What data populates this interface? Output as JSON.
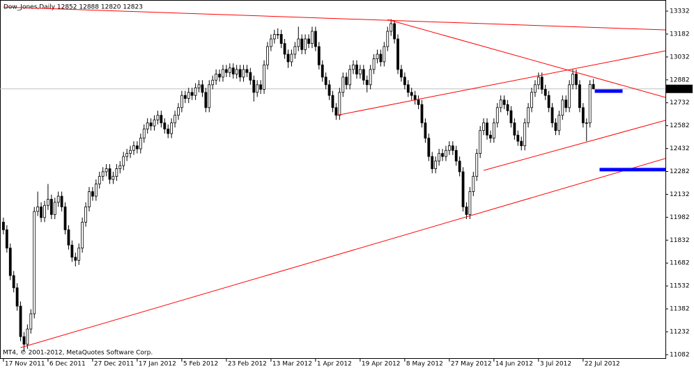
{
  "chart_data": {
    "type": "candlestick",
    "title": "Dow_Jones,Daily  12852 12888 12820 12823",
    "watermark": "MT4, © 2001-2012, MetaQuotes Software Corp.",
    "open": [
      11950,
      11900,
      11780,
      11600,
      11520,
      11400,
      11200,
      11150,
      11250,
      11350,
      12020,
      12050,
      11980,
      12060,
      12100,
      12000,
      12080,
      12120,
      12050,
      11900,
      11800,
      11720,
      11700,
      11780,
      11950,
      12050,
      12150,
      12120,
      12200,
      12250,
      12280,
      12300,
      12230,
      12250,
      12300,
      12320,
      12380,
      12400,
      12420,
      12450,
      12430,
      12500,
      12560,
      12600,
      12580,
      12620,
      12650,
      12600,
      12560,
      12530,
      12600,
      12650,
      12700,
      12780,
      12760,
      12800,
      12780,
      12830,
      12850,
      12800,
      12700,
      12850,
      12880,
      12920,
      12900,
      12950,
      12930,
      12960,
      12920,
      12950,
      12900,
      12950,
      12930,
      12880,
      12800,
      12850,
      12820,
      12980,
      13100,
      13150,
      13180,
      13180,
      13120,
      13050,
      13000,
      13050,
      13100,
      13150,
      13080,
      13150,
      13120,
      13200,
      13100,
      12980,
      12900,
      12850,
      12780,
      12700,
      12650,
      12800,
      12900,
      12850,
      12950,
      12980,
      12920,
      12950,
      12880,
      12850,
      12950,
      13020,
      13050,
      13000,
      13100,
      13200,
      13250,
      13150,
      12950,
      12900,
      12850,
      12800,
      12780,
      12750,
      12720,
      12600,
      12500,
      12380,
      12300,
      12350,
      12400,
      12380,
      12420,
      12450,
      12420,
      12350,
      12280,
      12050,
      12000,
      12150,
      12250,
      12400,
      12550,
      12600,
      12520,
      12500,
      12600,
      12700,
      12750,
      12720,
      12680,
      12600,
      12520,
      12480,
      12450,
      12600,
      12700,
      12800,
      12850,
      12900,
      12820,
      12780,
      12700,
      12600,
      12550,
      12650,
      12750,
      12700,
      12850,
      12920,
      12850,
      12700,
      12600,
      12600,
      12852
    ],
    "high": [
      11980,
      11930,
      11810,
      11630,
      11550,
      11430,
      11230,
      11280,
      11380,
      12050,
      12150,
      12080,
      12090,
      12200,
      12130,
      12110,
      12150,
      12150,
      12080,
      11930,
      11830,
      11750,
      11810,
      11980,
      12080,
      12180,
      12180,
      12230,
      12280,
      12310,
      12330,
      12330,
      12280,
      12330,
      12350,
      12410,
      12430,
      12450,
      12480,
      12480,
      12530,
      12590,
      12630,
      12630,
      12650,
      12680,
      12680,
      12630,
      12590,
      12630,
      12680,
      12730,
      12810,
      12810,
      12830,
      12830,
      12860,
      12880,
      12880,
      12830,
      12880,
      12910,
      12950,
      12950,
      12980,
      12980,
      12990,
      12990,
      12980,
      12980,
      12980,
      12980,
      12960,
      12910,
      12880,
      12880,
      13010,
      13130,
      13180,
      13210,
      13220,
      13210,
      13150,
      13080,
      13080,
      13130,
      13230,
      13180,
      13180,
      13180,
      13230,
      13230,
      13130,
      13010,
      12930,
      12880,
      12810,
      12730,
      12830,
      12930,
      12930,
      12980,
      13010,
      13010,
      12980,
      12980,
      12910,
      12980,
      13050,
      13080,
      13080,
      13130,
      13230,
      13280,
      13270,
      13180,
      12980,
      12930,
      12880,
      12830,
      12810,
      12780,
      12750,
      12630,
      12530,
      12410,
      12380,
      12430,
      12430,
      12450,
      12480,
      12480,
      12450,
      12380,
      12310,
      12080,
      12180,
      12280,
      12430,
      12580,
      12630,
      12630,
      12550,
      12630,
      12730,
      12780,
      12780,
      12750,
      12710,
      12630,
      12550,
      12510,
      12630,
      12730,
      12830,
      12880,
      12930,
      12930,
      12850,
      12810,
      12730,
      12630,
      12680,
      12780,
      12780,
      12880,
      12950,
      12950,
      12880,
      12730,
      12630,
      12880,
      12888
    ],
    "low": [
      11870,
      11750,
      11570,
      11490,
      11370,
      11170,
      11100,
      11120,
      11220,
      11320,
      11990,
      11950,
      11950,
      12030,
      11970,
      11970,
      12050,
      12020,
      11870,
      11770,
      11690,
      11660,
      11670,
      11750,
      11920,
      12020,
      12090,
      12090,
      12170,
      12220,
      12250,
      12200,
      12200,
      12220,
      12270,
      12290,
      12350,
      12370,
      12390,
      12400,
      12400,
      12470,
      12530,
      12550,
      12550,
      12590,
      12570,
      12530,
      12500,
      12500,
      12570,
      12620,
      12670,
      12730,
      12730,
      12750,
      12750,
      12800,
      12770,
      12670,
      12670,
      12820,
      12850,
      12870,
      12870,
      12900,
      12900,
      12890,
      12890,
      12870,
      12870,
      12900,
      12850,
      12740,
      12770,
      12790,
      12790,
      12950,
      13070,
      13120,
      13150,
      13090,
      13020,
      12960,
      12970,
      13020,
      13070,
      13050,
      13050,
      13090,
      13090,
      13070,
      12950,
      12870,
      12820,
      12750,
      12670,
      12620,
      12620,
      12770,
      12820,
      12820,
      12920,
      12890,
      12890,
      12850,
      12800,
      12820,
      12920,
      12990,
      12970,
      12970,
      13070,
      13170,
      13120,
      12920,
      12870,
      12820,
      12770,
      12750,
      12720,
      12690,
      12570,
      12470,
      12350,
      12270,
      12270,
      12320,
      12350,
      12350,
      12390,
      12390,
      12320,
      12250,
      12020,
      11970,
      11970,
      12120,
      12220,
      12370,
      12520,
      12490,
      12470,
      12470,
      12570,
      12670,
      12690,
      12650,
      12570,
      12490,
      12450,
      12420,
      12420,
      12570,
      12670,
      12770,
      12820,
      12790,
      12750,
      12670,
      12570,
      12520,
      12520,
      12620,
      12670,
      12670,
      12820,
      12820,
      12670,
      12570,
      12480,
      12570,
      12820
    ],
    "close": [
      11900,
      11780,
      11600,
      11520,
      11400,
      11200,
      11150,
      11250,
      11350,
      12020,
      12050,
      11980,
      12060,
      12100,
      12000,
      12080,
      12120,
      12050,
      11900,
      11800,
      11720,
      11700,
      11780,
      11950,
      12050,
      12150,
      12120,
      12200,
      12250,
      12280,
      12300,
      12230,
      12250,
      12300,
      12320,
      12380,
      12400,
      12420,
      12450,
      12430,
      12500,
      12560,
      12600,
      12580,
      12620,
      12650,
      12600,
      12560,
      12530,
      12600,
      12650,
      12700,
      12780,
      12760,
      12800,
      12780,
      12830,
      12850,
      12800,
      12700,
      12850,
      12880,
      12920,
      12900,
      12950,
      12930,
      12960,
      12920,
      12950,
      12900,
      12950,
      12930,
      12880,
      12800,
      12850,
      12820,
      12980,
      13100,
      13150,
      13180,
      13180,
      13120,
      13050,
      13000,
      13050,
      13100,
      13150,
      13080,
      13150,
      13120,
      13200,
      13100,
      12980,
      12900,
      12850,
      12780,
      12700,
      12650,
      12800,
      12900,
      12850,
      12950,
      12980,
      12920,
      12950,
      12880,
      12850,
      12950,
      13020,
      13050,
      13000,
      13100,
      13200,
      13250,
      13150,
      12950,
      12900,
      12850,
      12800,
      12780,
      12750,
      12720,
      12600,
      12500,
      12380,
      12300,
      12350,
      12400,
      12380,
      12420,
      12450,
      12420,
      12350,
      12280,
      12050,
      12000,
      12150,
      12250,
      12400,
      12550,
      12600,
      12520,
      12500,
      12600,
      12700,
      12750,
      12720,
      12680,
      12600,
      12520,
      12480,
      12450,
      12600,
      12700,
      12800,
      12850,
      12900,
      12820,
      12780,
      12700,
      12600,
      12550,
      12650,
      12750,
      12700,
      12850,
      12920,
      12850,
      12700,
      12600,
      12600,
      12852,
      12823
    ],
    "xlim": [
      -1,
      193
    ],
    "xticks": [
      {
        "value": 0,
        "label": "17 Nov 2011"
      },
      {
        "value": 13,
        "label": "6 Dec 2011"
      },
      {
        "value": 26,
        "label": "27 Dec 2011"
      },
      {
        "value": 39,
        "label": "17 Jan 2012"
      },
      {
        "value": 52,
        "label": "5 Feb 2012"
      },
      {
        "value": 65,
        "label": "23 Feb 2012"
      },
      {
        "value": 78,
        "label": "13 Mar 2012"
      },
      {
        "value": 91,
        "label": "1 Apr 2012"
      },
      {
        "value": 104,
        "label": "19 Apr 2012"
      },
      {
        "value": 117,
        "label": "8 May 2012"
      },
      {
        "value": 130,
        "label": "27 May 2012"
      },
      {
        "value": 143,
        "label": "14 Jun 2012"
      },
      {
        "value": 156,
        "label": "3 Jul 2012"
      },
      {
        "value": 169,
        "label": "22 Jul 2012"
      }
    ],
    "ylim": [
      11059,
      13405
    ],
    "yticks": [
      11082,
      11232,
      11382,
      11532,
      11682,
      11832,
      11982,
      12132,
      12282,
      12432,
      12582,
      12732,
      12882,
      13032,
      13182,
      13332
    ],
    "current_price": 12823,
    "trendline_color": "#ff0000",
    "trendlines": [
      {
        "from": [
          0,
          13359
        ],
        "to": [
          193,
          13209
        ]
      },
      {
        "from": [
          112,
          13277
        ],
        "to": [
          193,
          12767
        ]
      },
      {
        "from": [
          97,
          12649
        ],
        "to": [
          193,
          13072
        ]
      },
      {
        "from": [
          140,
          12289
        ],
        "to": [
          193,
          12617
        ]
      },
      {
        "from": [
          5,
          11128
        ],
        "to": [
          193,
          12367
        ]
      }
    ],
    "level_color": "#0000ff",
    "levels": [
      {
        "value": 12808,
        "from": 172.4,
        "to": 180.5
      },
      {
        "value": 12294,
        "from": 173.8,
        "to": 193
      }
    ]
  }
}
